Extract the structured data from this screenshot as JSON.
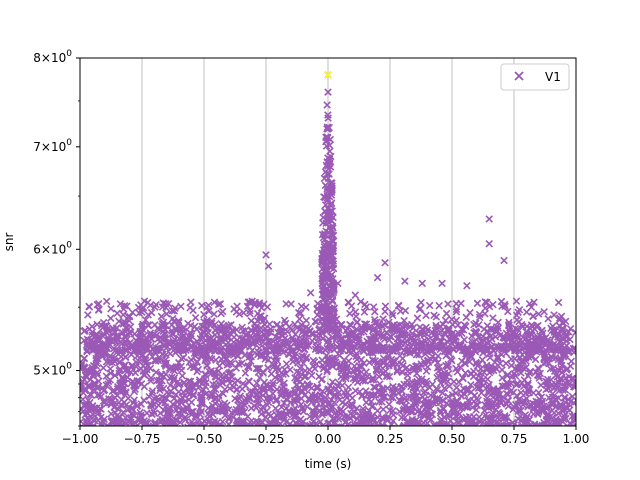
{
  "chart_data": {
    "type": "scatter",
    "xlabel": "time (s)",
    "ylabel": "snr",
    "xlim": [
      -1.0,
      1.0
    ],
    "ylim": [
      4.6,
      8.0
    ],
    "yscale": "log",
    "grid": "x-axis vertical lines",
    "legend_position": "top-right",
    "x_ticks": [
      "−1.00",
      "−0.75",
      "−0.50",
      "−0.25",
      "0.00",
      "0.25",
      "0.50",
      "0.75",
      "1.00"
    ],
    "x_tick_values": [
      -1.0,
      -0.75,
      -0.5,
      -0.25,
      0.0,
      0.25,
      0.5,
      0.75,
      1.0
    ],
    "y_ticks": [
      {
        "value": 5,
        "mantissa": "5",
        "base": "10",
        "exp": "0"
      },
      {
        "value": 6,
        "mantissa": "6",
        "base": "10",
        "exp": "0"
      },
      {
        "value": 7,
        "mantissa": "7",
        "base": "10",
        "exp": "0"
      },
      {
        "value": 8,
        "mantissa": "8",
        "base": "10",
        "exp": "0"
      }
    ],
    "series": [
      {
        "name": "V1",
        "color": "#9b59b6",
        "marker": "x",
        "description_points": [
          [
            -0.85,
            5.45
          ],
          [
            -0.74,
            5.55
          ],
          [
            -0.62,
            5.47
          ],
          [
            -0.5,
            5.38
          ],
          [
            -0.4,
            5.35
          ],
          [
            -0.25,
            5.95
          ],
          [
            -0.24,
            5.85
          ],
          [
            -0.18,
            5.3
          ],
          [
            -0.07,
            5.62
          ],
          [
            0.0,
            7.8
          ],
          [
            0.0,
            7.6
          ],
          [
            0.0,
            7.2
          ],
          [
            0.0,
            6.8
          ],
          [
            0.01,
            6.3
          ],
          [
            0.04,
            5.7
          ],
          [
            0.11,
            5.6
          ],
          [
            0.2,
            5.75
          ],
          [
            0.23,
            5.88
          ],
          [
            0.31,
            5.72
          ],
          [
            0.38,
            5.7
          ],
          [
            0.46,
            5.7
          ],
          [
            0.56,
            5.68
          ],
          [
            0.65,
            6.28
          ],
          [
            0.65,
            6.05
          ],
          [
            0.71,
            5.9
          ],
          [
            0.76,
            5.55
          ],
          [
            0.82,
            5.5
          ],
          [
            0.97,
            5.3
          ]
        ],
        "peak": {
          "x": 0.0,
          "y": 7.8,
          "color": "#ffff00"
        }
      }
    ]
  }
}
